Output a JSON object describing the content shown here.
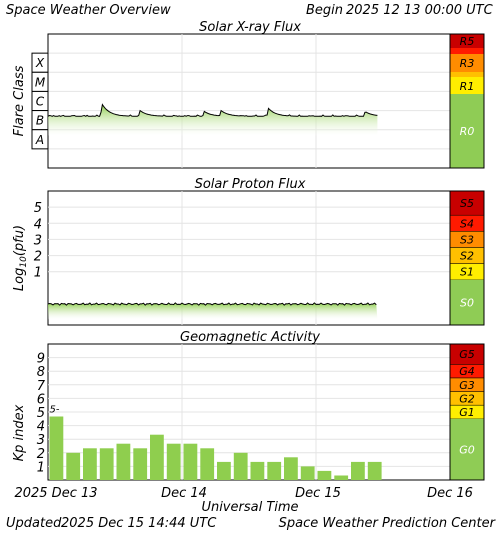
{
  "header": {
    "title": "Space Weather Overview",
    "begin_label": "Begin",
    "begin_value": "2025 12 13 00:00 UTC"
  },
  "footer": {
    "updated_label": "Updated",
    "updated_value": "2025 Dec 15 14:44 UTC",
    "center": "Space Weather Prediction Center"
  },
  "time_axis": {
    "label": "Universal Time",
    "ticks": [
      "2025 Dec 13",
      "Dec 14",
      "Dec 15",
      "Dec 16"
    ],
    "range_hours": [
      0,
      72
    ]
  },
  "colors": {
    "series_green": "#8fce4e",
    "scale_green": "#8fcc55",
    "r5_s5_g5": "#c80000",
    "r4_s4_g4": "#ff1a00",
    "r3_s3_g3": "#ff8c00",
    "r2_s2_g2": "#ffc000",
    "r1_s1_g1": "#ffee00",
    "grid": "#e4e4e4"
  },
  "chart_data": [
    {
      "type": "area",
      "title": "Solar X-ray Flux",
      "ylabel": "Flare Class",
      "class_labels": [
        "X",
        "M",
        "C",
        "B",
        "A"
      ],
      "ylim_log10_flux": [
        -9,
        -2
      ],
      "x_hours_range": [
        0,
        59
      ],
      "baseline_class": "B5",
      "peaks": [
        {
          "t_hours": 9.7,
          "class": "C2.2"
        },
        {
          "t_hours": 16.5,
          "class": "C1.0"
        },
        {
          "t_hours": 28.0,
          "class": "B9"
        },
        {
          "t_hours": 31.0,
          "class": "C1.0"
        },
        {
          "t_hours": 39.5,
          "class": "C1.3"
        },
        {
          "t_hours": 56.8,
          "class": "B9"
        }
      ],
      "scale": {
        "labels": [
          "R5",
          "R3",
          "R1",
          "R0"
        ]
      }
    },
    {
      "type": "area",
      "title": "Solar Proton Flux",
      "ylabel": "Log10(pfu)",
      "ylabel_base": "Log",
      "ylabel_sub": "10",
      "ylabel_unit": "(pfu)",
      "yticks": [
        "5",
        "4",
        "3",
        "2",
        "1"
      ],
      "ylim": [
        -2.3,
        6
      ],
      "x_hours_range": [
        0,
        59
      ],
      "level_log10_pfu": -1.0,
      "scale": {
        "labels": [
          "S5",
          "S4",
          "S3",
          "S2",
          "S1",
          "S0"
        ]
      }
    },
    {
      "type": "bar",
      "title": "Geomagnetic Activity",
      "ylabel": "Kp index",
      "yticks": [
        "9",
        "8",
        "7",
        "6",
        "5",
        "4",
        "3",
        "2",
        "1"
      ],
      "ylim": [
        0,
        10
      ],
      "bar_hours": 3,
      "values": [
        4.67,
        2.0,
        2.33,
        2.33,
        2.67,
        2.33,
        3.33,
        2.67,
        2.67,
        2.33,
        1.33,
        2.0,
        1.33,
        1.33,
        1.67,
        1.0,
        0.67,
        0.33,
        1.33,
        1.33
      ],
      "annotation": {
        "text": "5-",
        "bar_index": 0
      },
      "scale": {
        "labels": [
          "G5",
          "G4",
          "G3",
          "G2",
          "G1",
          "G0"
        ]
      }
    }
  ]
}
